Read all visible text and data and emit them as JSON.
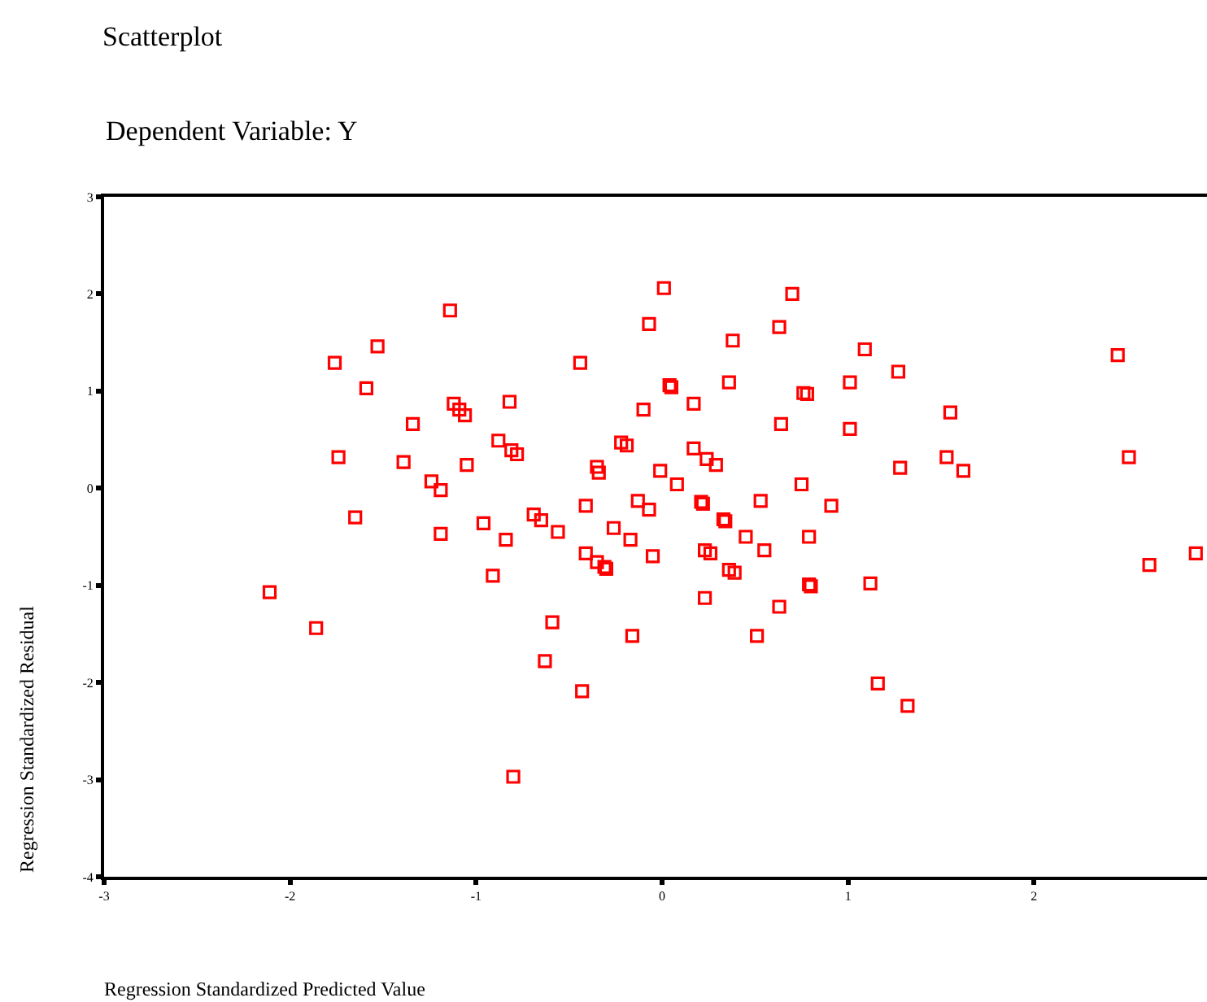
{
  "chart_data": {
    "type": "scatter",
    "title": "Scatterplot",
    "subtitle": "Dependent Variable: Y",
    "xlabel": "Regression Standardized Predicted Value",
    "ylabel": "Regression Standardized Residual",
    "x": [
      -1.14,
      -1.53,
      -1.76,
      -1.59,
      -1.12,
      -1.09,
      -1.06,
      -1.34,
      -1.74,
      -1.39,
      -1.05,
      -1.24,
      -1.19,
      -1.65,
      -1.19,
      -2.11,
      -1.86,
      0.01,
      0.7,
      -0.07,
      0.63,
      0.38,
      -0.44,
      0.04,
      0.05,
      0.36,
      0.76,
      0.78,
      -0.82,
      -0.1,
      0.17,
      0.64,
      -0.88,
      -0.81,
      -0.78,
      -0.22,
      -0.19,
      0.17,
      0.24,
      0.29,
      -0.35,
      -0.34,
      -0.01,
      0.08,
      0.75,
      -0.41,
      -0.13,
      -0.07,
      0.21,
      0.22,
      0.53,
      0.91,
      -0.96,
      -0.69,
      -0.65,
      -0.56,
      -0.26,
      -0.17,
      0.33,
      0.34,
      0.45,
      0.79,
      -0.84,
      -0.41,
      -0.35,
      -0.31,
      -0.3,
      -0.05,
      0.23,
      0.26,
      0.55,
      0.36,
      0.39,
      0.79,
      0.8,
      -0.91,
      0.23,
      0.63,
      -0.59,
      -0.16,
      0.51,
      -0.63,
      -0.43,
      -0.8,
      1.09,
      1.27,
      1.01,
      1.55,
      1.01,
      1.28,
      1.53,
      1.62,
      1.12,
      1.16,
      1.32,
      2.45,
      2.51,
      2.62,
      2.87
    ],
    "series": [
      {
        "color": "#ff0000",
        "values": [
          1.83,
          1.46,
          1.29,
          1.03,
          0.87,
          0.81,
          0.75,
          0.66,
          0.32,
          0.27,
          0.24,
          0.07,
          -0.02,
          -0.3,
          -0.47,
          -1.07,
          -1.44,
          2.06,
          2.0,
          1.69,
          1.66,
          1.52,
          1.29,
          1.06,
          1.04,
          1.09,
          0.98,
          0.97,
          0.89,
          0.81,
          0.87,
          0.66,
          0.49,
          0.39,
          0.35,
          0.47,
          0.44,
          0.41,
          0.3,
          0.24,
          0.22,
          0.16,
          0.18,
          0.04,
          0.04,
          -0.18,
          -0.13,
          -0.22,
          -0.14,
          -0.16,
          -0.13,
          -0.18,
          -0.36,
          -0.27,
          -0.33,
          -0.45,
          -0.41,
          -0.53,
          -0.32,
          -0.34,
          -0.5,
          -0.5,
          -0.53,
          -0.67,
          -0.76,
          -0.81,
          -0.83,
          -0.7,
          -0.64,
          -0.67,
          -0.64,
          -0.84,
          -0.87,
          -0.99,
          -1.01,
          -0.9,
          -1.13,
          -1.22,
          -1.38,
          -1.52,
          -1.52,
          -1.78,
          -2.09,
          -2.97,
          1.43,
          1.2,
          1.09,
          0.78,
          0.61,
          0.21,
          0.32,
          0.18,
          -0.98,
          -2.01,
          -2.24,
          1.37,
          0.32,
          -0.79,
          -0.67
        ]
      }
    ],
    "marker": "square",
    "xlim": [
      -3,
      2.93
    ],
    "ylim": [
      -4,
      3
    ],
    "xticks": [
      -3,
      -2,
      -1,
      0,
      1,
      2
    ],
    "yticks": [
      -4,
      -3,
      -2,
      -1,
      0,
      1,
      2,
      3
    ],
    "grid": false
  }
}
